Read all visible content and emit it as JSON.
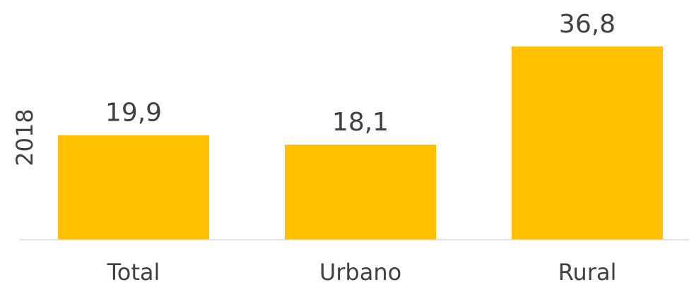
{
  "chart_data": {
    "type": "bar",
    "y_label": "2018",
    "categories": [
      "Total",
      "Urbano",
      "Rural"
    ],
    "values": [
      19.9,
      18.1,
      36.8
    ],
    "value_labels": [
      "19,9",
      "18,1",
      "36,8"
    ],
    "color": "#ffc000",
    "ylim": [
      0,
      40
    ]
  }
}
